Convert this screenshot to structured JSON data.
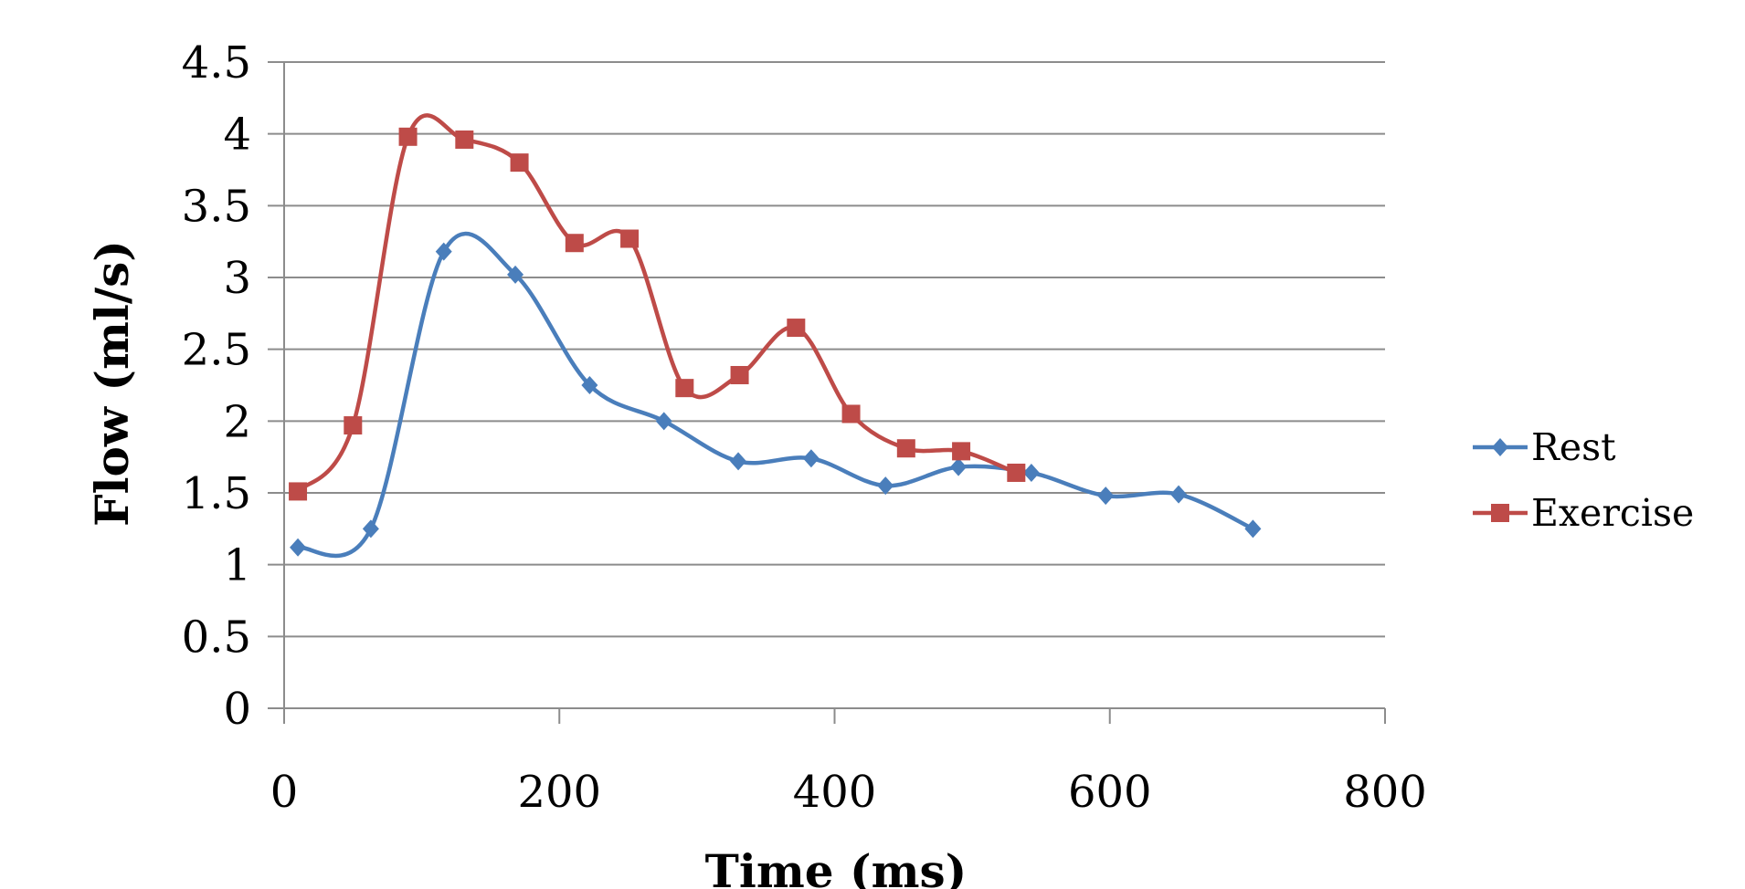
{
  "chart_data": {
    "type": "line",
    "title": "",
    "xlabel": "Time (ms)",
    "ylabel": "Flow (ml/s)",
    "xlim": [
      0,
      800
    ],
    "ylim": [
      0,
      4.5
    ],
    "x_ticks": [
      "0",
      "200",
      "400",
      "600",
      "800"
    ],
    "y_ticks": [
      "0",
      "0.5",
      "1",
      "1.5",
      "2",
      "2.5",
      "3",
      "3.5",
      "4",
      "4.5"
    ],
    "x_tick_values": [
      0,
      200,
      400,
      600,
      800
    ],
    "y_tick_values": [
      0,
      0.5,
      1,
      1.5,
      2,
      2.5,
      3,
      3.5,
      4,
      4.5
    ],
    "grid": "horizontal",
    "legend_position": "right",
    "smooth": true,
    "series": [
      {
        "name": "Rest",
        "color": "#4A7EBB",
        "marker": "diamond",
        "x": [
          10,
          63,
          116,
          168,
          222,
          276,
          330,
          383,
          437,
          490,
          543,
          597,
          650,
          704
        ],
        "y": [
          1.12,
          1.25,
          3.18,
          3.02,
          2.25,
          2.0,
          1.72,
          1.74,
          1.55,
          1.68,
          1.64,
          1.48,
          1.49,
          1.25
        ]
      },
      {
        "name": "Exercise",
        "color": "#BE4B48",
        "marker": "square",
        "x": [
          10,
          50,
          90,
          131,
          171,
          211,
          251,
          291,
          331,
          372,
          412,
          452,
          492,
          532
        ],
        "y": [
          1.51,
          1.97,
          3.98,
          3.96,
          3.8,
          3.24,
          3.27,
          2.23,
          2.32,
          2.65,
          2.05,
          1.81,
          1.79,
          1.64
        ]
      }
    ]
  }
}
